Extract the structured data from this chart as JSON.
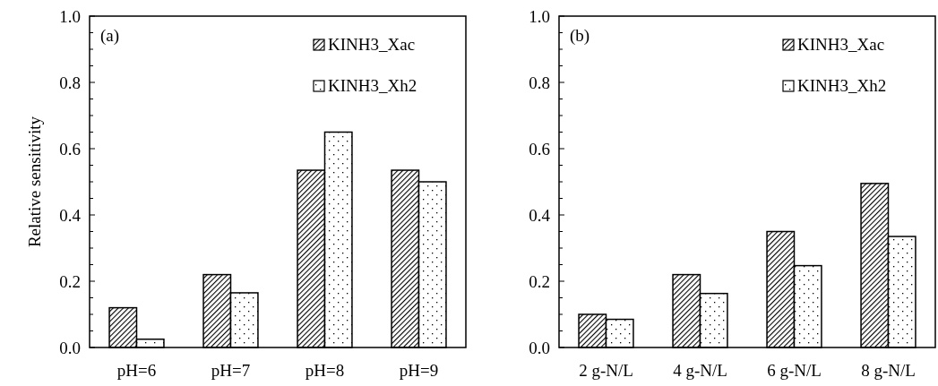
{
  "chart_data": [
    {
      "type": "bar",
      "ylabel": "Relative sensitivity",
      "annotations": [
        "(a)"
      ],
      "categories": [
        "pH=6",
        "pH=7",
        "pH=8",
        "pH=9"
      ],
      "series": [
        {
          "name": "KINH3_Xac",
          "color": "#000000",
          "values": [
            0.12,
            0.22,
            0.535,
            0.535
          ]
        },
        {
          "name": "KINH3_Xh2",
          "color": "#000000",
          "values": [
            0.025,
            0.165,
            0.65,
            0.5
          ]
        }
      ],
      "ylim": [
        0,
        1
      ],
      "yticks": [
        {
          "value": 0,
          "label": "0.0"
        },
        {
          "value": 0.05,
          "label": null
        },
        {
          "value": 0.1,
          "label": null
        },
        {
          "value": 0.15,
          "label": null
        },
        {
          "value": 0.2,
          "label": "0.2"
        },
        {
          "value": 0.25,
          "label": null
        },
        {
          "value": 0.3,
          "label": null
        },
        {
          "value": 0.35,
          "label": null
        },
        {
          "value": 0.4,
          "label": "0.4"
        },
        {
          "value": 0.45,
          "label": null
        },
        {
          "value": 0.5,
          "label": null
        },
        {
          "value": 0.55,
          "label": null
        },
        {
          "value": 0.6,
          "label": "0.6"
        },
        {
          "value": 0.65,
          "label": null
        },
        {
          "value": 0.7,
          "label": null
        },
        {
          "value": 0.75,
          "label": null
        },
        {
          "value": 0.8,
          "label": "0.8"
        },
        {
          "value": 0.85,
          "label": null
        },
        {
          "value": 0.9,
          "label": null
        },
        {
          "value": 0.95,
          "label": null
        },
        {
          "value": 1,
          "label": "1.0"
        }
      ],
      "legend": "top right"
    },
    {
      "type": "bar",
      "annotations": [
        "(b)"
      ],
      "categories": [
        "2 g-N/L",
        "4 g-N/L",
        "6 g-N/L",
        "8 g-N/L"
      ],
      "series": [
        {
          "name": "KINH3_Xac",
          "color": "#000000",
          "values": [
            0.1,
            0.22,
            0.35,
            0.495
          ]
        },
        {
          "name": "KINH3_Xh2",
          "color": "#000000",
          "values": [
            0.085,
            0.163,
            0.247,
            0.335
          ]
        }
      ],
      "ylim": [
        0,
        1
      ],
      "yticks": [
        {
          "value": 0,
          "label": "0.0"
        },
        {
          "value": 0.05,
          "label": null
        },
        {
          "value": 0.1,
          "label": null
        },
        {
          "value": 0.15,
          "label": null
        },
        {
          "value": 0.2,
          "label": "0.2"
        },
        {
          "value": 0.25,
          "label": null
        },
        {
          "value": 0.3,
          "label": null
        },
        {
          "value": 0.35,
          "label": null
        },
        {
          "value": 0.4,
          "label": "0.4"
        },
        {
          "value": 0.45,
          "label": null
        },
        {
          "value": 0.5,
          "label": null
        },
        {
          "value": 0.55,
          "label": null
        },
        {
          "value": 0.6,
          "label": "0.6"
        },
        {
          "value": 0.65,
          "label": null
        },
        {
          "value": 0.7,
          "label": null
        },
        {
          "value": 0.75,
          "label": null
        },
        {
          "value": 0.8,
          "label": "0.8"
        },
        {
          "value": 0.85,
          "label": null
        },
        {
          "value": 0.9,
          "label": null
        },
        {
          "value": 0.95,
          "label": null
        },
        {
          "value": 1,
          "label": "1.0"
        }
      ],
      "legend": "top right"
    }
  ]
}
